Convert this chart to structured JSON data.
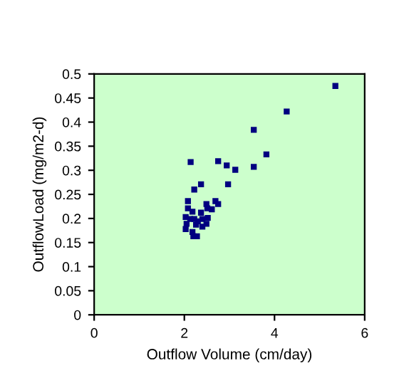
{
  "chart_data": {
    "type": "scatter",
    "xlabel": "Outflow Volume (cm/day)",
    "ylabel": "OutflowLoad (mg/m2-d)",
    "x": [
      5.35,
      4.27,
      3.54,
      3.82,
      3.54,
      2.75,
      2.94,
      3.13,
      2.14,
      2.97,
      2.37,
      2.22,
      2.69,
      2.75,
      2.49,
      2.61,
      2.51,
      2.08,
      2.08,
      2.18,
      2.03,
      2.37,
      2.52,
      2.4,
      2.22,
      2.05,
      2.26,
      2.49,
      2.03,
      2.4,
      2.3,
      2.18,
      2.2,
      2.28,
      2.13
    ],
    "series": [
      {
        "color": "#000080",
        "values": [
          0.475,
          0.422,
          0.384,
          0.333,
          0.307,
          0.319,
          0.31,
          0.301,
          0.317,
          0.271,
          0.271,
          0.26,
          0.236,
          0.23,
          0.23,
          0.219,
          0.221,
          0.236,
          0.221,
          0.214,
          0.203,
          0.212,
          0.201,
          0.199,
          0.199,
          0.189,
          0.187,
          0.189,
          0.178,
          0.183,
          0.194,
          0.172,
          0.163,
          0.163,
          0.199
        ]
      }
    ],
    "marker": "square",
    "xlim": [
      0,
      6
    ],
    "xticks": [
      0,
      2,
      4,
      6
    ],
    "ylim": [
      0,
      0.5
    ],
    "yticks": [
      0,
      0.05,
      0.1,
      0.15,
      0.2,
      0.25,
      0.3,
      0.35,
      0.4,
      0.45,
      0.5
    ],
    "grid": false,
    "legend": false
  }
}
